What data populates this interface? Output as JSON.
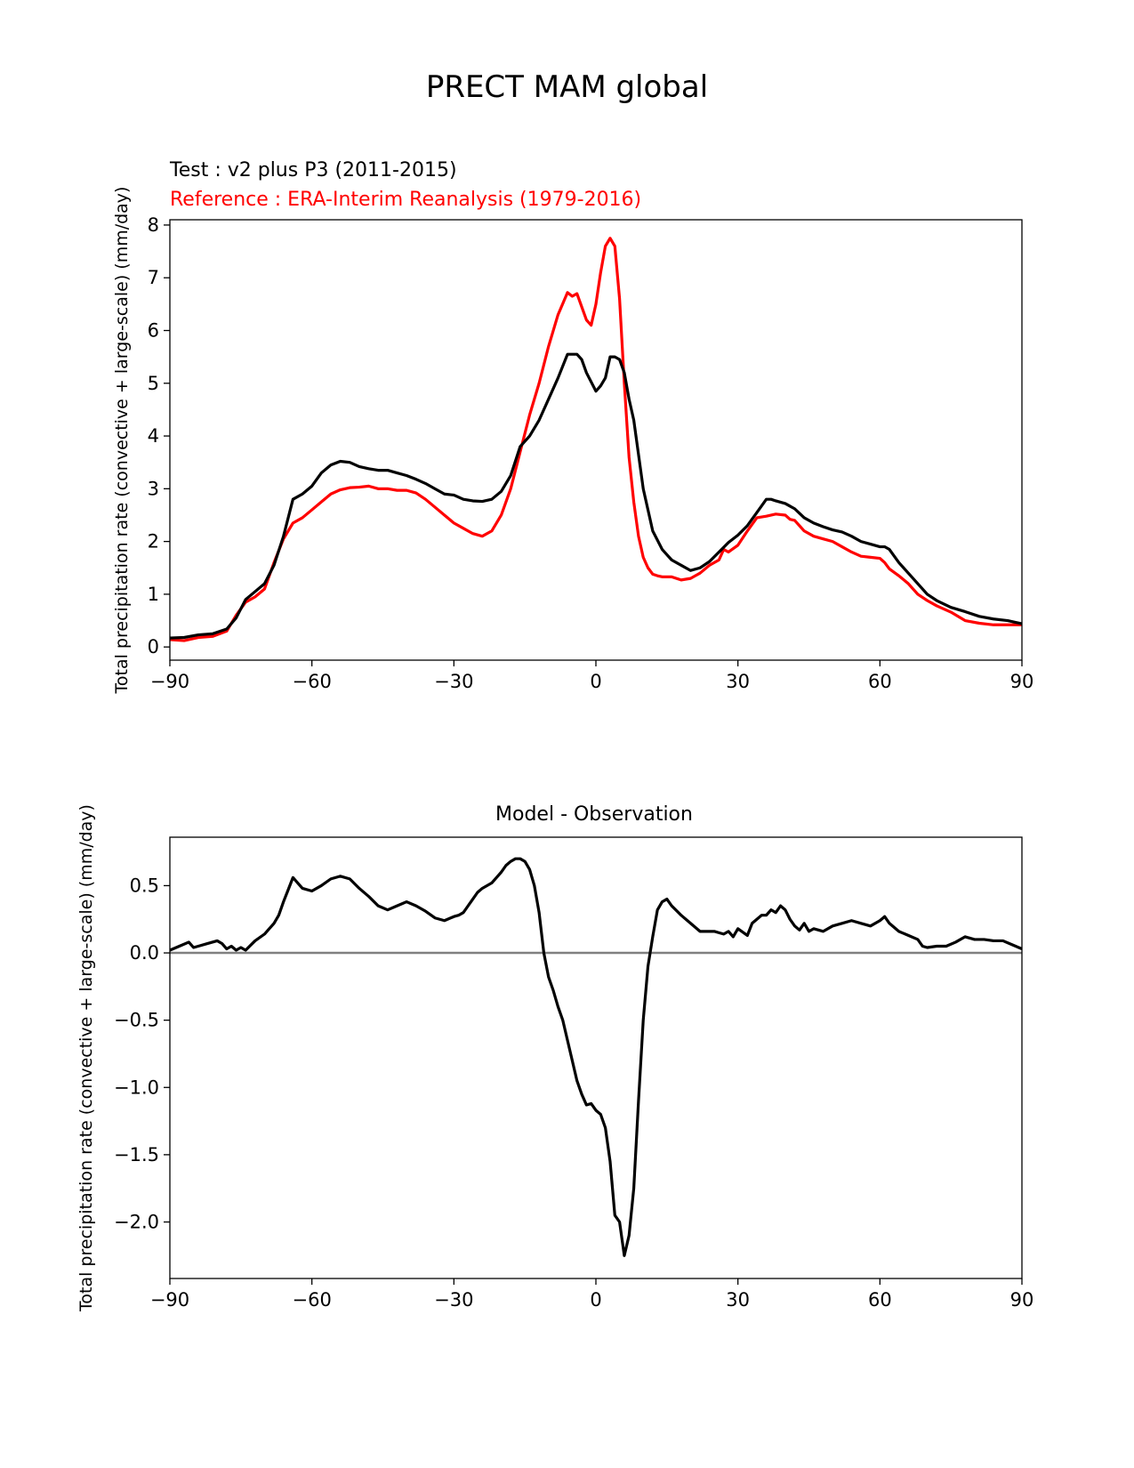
{
  "title": "PRECT MAM global",
  "colors": {
    "test": "#000000",
    "reference": "#ff0000",
    "zero_line": "#808080"
  },
  "chart_data": [
    {
      "type": "line",
      "panel": "top",
      "test_label": "Test : v2 plus P3 (2011-2015)",
      "reference_label": "Reference : ERA-Interim Reanalysis (1979-2016)",
      "ylabel": "Total precipitation rate (convective + large-scale) (mm/day)",
      "xlabel": "",
      "xlim": [
        -90,
        90
      ],
      "ylim": [
        -0.25,
        8.1
      ],
      "x_ticks": [
        -90,
        -60,
        -30,
        0,
        30,
        60,
        90
      ],
      "x_tick_labels": [
        "−90",
        "−60",
        "−30",
        "0",
        "30",
        "60",
        "90"
      ],
      "y_ticks": [
        0,
        1,
        2,
        3,
        4,
        5,
        6,
        7,
        8
      ],
      "y_tick_labels": [
        "0",
        "1",
        "2",
        "3",
        "4",
        "5",
        "6",
        "7",
        "8"
      ],
      "series": [
        {
          "name": "Test : v2 plus P3 (2011-2015)",
          "color": "#000000",
          "x": [
            -90,
            -87,
            -84,
            -81,
            -78,
            -76,
            -74,
            -72,
            -70,
            -68,
            -66,
            -64,
            -62,
            -60,
            -58,
            -56,
            -54,
            -52,
            -50,
            -48,
            -46,
            -44,
            -42,
            -40,
            -38,
            -36,
            -34,
            -32,
            -30,
            -28,
            -26,
            -24,
            -22,
            -20,
            -18,
            -16,
            -14,
            -12,
            -10,
            -8,
            -6,
            -4,
            -3,
            -2,
            0,
            1,
            2,
            3,
            4,
            5,
            6,
            7,
            8,
            10,
            12,
            14,
            16,
            18,
            20,
            22,
            24,
            26,
            28,
            30,
            32,
            34,
            36,
            37,
            38,
            40,
            42,
            44,
            46,
            48,
            50,
            52,
            54,
            56,
            58,
            60,
            61,
            62,
            64,
            66,
            68,
            70,
            72,
            75,
            78,
            81,
            84,
            87,
            90
          ],
          "values": [
            0.17,
            0.18,
            0.23,
            0.25,
            0.34,
            0.55,
            0.9,
            1.05,
            1.2,
            1.55,
            2.1,
            2.8,
            2.9,
            3.05,
            3.3,
            3.45,
            3.52,
            3.5,
            3.42,
            3.38,
            3.35,
            3.35,
            3.3,
            3.25,
            3.18,
            3.1,
            3.0,
            2.9,
            2.88,
            2.8,
            2.77,
            2.76,
            2.8,
            2.95,
            3.25,
            3.8,
            4.0,
            4.3,
            4.7,
            5.1,
            5.55,
            5.55,
            5.45,
            5.2,
            4.85,
            4.95,
            5.1,
            5.5,
            5.5,
            5.45,
            5.2,
            4.7,
            4.3,
            3.0,
            2.2,
            1.85,
            1.65,
            1.55,
            1.45,
            1.5,
            1.62,
            1.8,
            1.98,
            2.12,
            2.3,
            2.55,
            2.8,
            2.8,
            2.77,
            2.72,
            2.62,
            2.45,
            2.35,
            2.28,
            2.22,
            2.18,
            2.1,
            2.0,
            1.95,
            1.9,
            1.9,
            1.85,
            1.6,
            1.4,
            1.2,
            1.0,
            0.88,
            0.75,
            0.67,
            0.58,
            0.53,
            0.5,
            0.44
          ]
        },
        {
          "name": "Reference : ERA-Interim Reanalysis (1979-2016)",
          "color": "#ff0000",
          "x": [
            -90,
            -87,
            -84,
            -81,
            -78,
            -76,
            -74,
            -72,
            -70,
            -68,
            -66,
            -64,
            -62,
            -60,
            -58,
            -56,
            -54,
            -52,
            -50,
            -48,
            -46,
            -44,
            -42,
            -40,
            -38,
            -36,
            -34,
            -32,
            -30,
            -28,
            -26,
            -24,
            -22,
            -20,
            -18,
            -16,
            -14,
            -12,
            -10,
            -8,
            -6,
            -5,
            -4,
            -3,
            -2,
            -1,
            0,
            1,
            2,
            3,
            4,
            5,
            6,
            7,
            8,
            9,
            10,
            11,
            12,
            13,
            14,
            16,
            18,
            20,
            21,
            22,
            24,
            26,
            27,
            28,
            30,
            32,
            34,
            36,
            38,
            40,
            41,
            42,
            44,
            46,
            48,
            50,
            52,
            54,
            56,
            58,
            60,
            61,
            62,
            64,
            66,
            68,
            70,
            72,
            75,
            78,
            81,
            84,
            87,
            90
          ],
          "values": [
            0.14,
            0.12,
            0.18,
            0.2,
            0.3,
            0.6,
            0.85,
            0.95,
            1.1,
            1.6,
            2.05,
            2.35,
            2.45,
            2.6,
            2.75,
            2.9,
            2.98,
            3.02,
            3.03,
            3.05,
            3.0,
            3.0,
            2.97,
            2.97,
            2.92,
            2.8,
            2.65,
            2.5,
            2.35,
            2.25,
            2.15,
            2.1,
            2.2,
            2.5,
            3.0,
            3.7,
            4.4,
            5.0,
            5.7,
            6.3,
            6.72,
            6.65,
            6.7,
            6.45,
            6.2,
            6.1,
            6.5,
            7.1,
            7.6,
            7.75,
            7.6,
            6.6,
            5.0,
            3.6,
            2.75,
            2.1,
            1.7,
            1.5,
            1.38,
            1.35,
            1.33,
            1.33,
            1.27,
            1.3,
            1.35,
            1.4,
            1.55,
            1.65,
            1.85,
            1.8,
            1.93,
            2.2,
            2.45,
            2.48,
            2.52,
            2.5,
            2.42,
            2.4,
            2.2,
            2.1,
            2.05,
            2.0,
            1.9,
            1.8,
            1.72,
            1.7,
            1.68,
            1.6,
            1.48,
            1.35,
            1.2,
            1.0,
            0.88,
            0.78,
            0.66,
            0.5,
            0.45,
            0.42,
            0.42,
            0.42
          ]
        }
      ]
    },
    {
      "type": "line",
      "panel": "bottom",
      "title": "Model - Observation",
      "ylabel": "Total precipitation rate (convective + large-scale) (mm/day)",
      "xlabel": "",
      "xlim": [
        -90,
        90
      ],
      "ylim": [
        -2.42,
        0.86
      ],
      "x_ticks": [
        -90,
        -60,
        -30,
        0,
        30,
        60,
        90
      ],
      "x_tick_labels": [
        "−90",
        "−60",
        "−30",
        "0",
        "30",
        "60",
        "90"
      ],
      "y_ticks": [
        0.5,
        0.0,
        -0.5,
        -1.0,
        -1.5,
        -2.0
      ],
      "y_tick_labels": [
        "0.5",
        "0.0",
        "−0.5",
        "−1.0",
        "−1.5",
        "−2.0"
      ],
      "zero_line": 0,
      "series": [
        {
          "name": "Model - Observation",
          "color": "#000000",
          "x": [
            -90,
            -88,
            -86,
            -85,
            -84,
            -82,
            -80,
            -79,
            -78,
            -77,
            -76,
            -75,
            -74,
            -72,
            -70,
            -69,
            -68,
            -67,
            -66,
            -65,
            -64,
            -63,
            -62,
            -60,
            -58,
            -56,
            -54,
            -52,
            -50,
            -48,
            -46,
            -44,
            -42,
            -40,
            -38,
            -36,
            -34,
            -32,
            -30,
            -29,
            -28,
            -27,
            -26,
            -25,
            -24,
            -22,
            -20,
            -19,
            -18,
            -17,
            -16,
            -15,
            -14,
            -13,
            -12,
            -11,
            -10,
            -9,
            -8,
            -7,
            -6,
            -5,
            -4,
            -3,
            -2,
            -1,
            0,
            1,
            2,
            3,
            4,
            5,
            6,
            7,
            8,
            9,
            10,
            11,
            12,
            13,
            14,
            15,
            16,
            18,
            20,
            22,
            24,
            25,
            26,
            27,
            28,
            29,
            30,
            32,
            33,
            34,
            35,
            36,
            37,
            38,
            39,
            40,
            41,
            42,
            43,
            44,
            45,
            46,
            48,
            50,
            52,
            54,
            56,
            58,
            60,
            61,
            62,
            64,
            66,
            68,
            69,
            70,
            72,
            74,
            76,
            78,
            80,
            82,
            84,
            86,
            88,
            90
          ],
          "values": [
            0.02,
            0.05,
            0.08,
            0.04,
            0.05,
            0.07,
            0.09,
            0.07,
            0.03,
            0.05,
            0.02,
            0.04,
            0.02,
            0.09,
            0.14,
            0.18,
            0.22,
            0.28,
            0.38,
            0.47,
            0.56,
            0.52,
            0.48,
            0.46,
            0.5,
            0.55,
            0.57,
            0.55,
            0.48,
            0.42,
            0.35,
            0.32,
            0.35,
            0.38,
            0.35,
            0.31,
            0.26,
            0.24,
            0.27,
            0.28,
            0.3,
            0.35,
            0.4,
            0.45,
            0.48,
            0.52,
            0.6,
            0.65,
            0.68,
            0.7,
            0.7,
            0.68,
            0.62,
            0.5,
            0.3,
            0.0,
            -0.18,
            -0.28,
            -0.4,
            -0.5,
            -0.65,
            -0.8,
            -0.95,
            -1.05,
            -1.13,
            -1.12,
            -1.17,
            -1.2,
            -1.3,
            -1.55,
            -1.95,
            -2.0,
            -2.25,
            -2.1,
            -1.75,
            -1.1,
            -0.5,
            -0.1,
            0.12,
            0.32,
            0.38,
            0.4,
            0.35,
            0.28,
            0.22,
            0.16,
            0.16,
            0.16,
            0.15,
            0.14,
            0.16,
            0.12,
            0.18,
            0.13,
            0.22,
            0.25,
            0.28,
            0.28,
            0.32,
            0.3,
            0.35,
            0.32,
            0.25,
            0.2,
            0.17,
            0.22,
            0.16,
            0.18,
            0.16,
            0.2,
            0.22,
            0.24,
            0.22,
            0.2,
            0.24,
            0.27,
            0.22,
            0.16,
            0.13,
            0.1,
            0.05,
            0.04,
            0.05,
            0.05,
            0.08,
            0.12,
            0.1,
            0.1,
            0.09,
            0.09,
            0.06,
            0.03
          ]
        }
      ]
    }
  ]
}
